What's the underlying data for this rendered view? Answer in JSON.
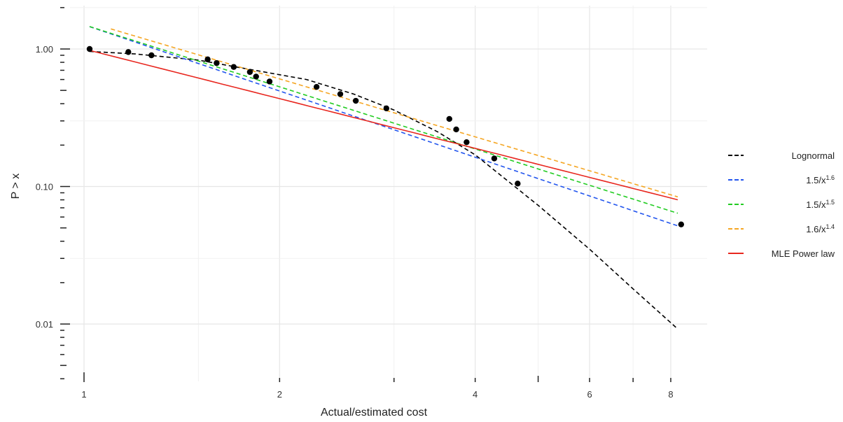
{
  "chart_data": {
    "type": "scatter",
    "xlabel": "Actual/estimated cost",
    "ylabel": "P > x",
    "x_scale": "log",
    "y_scale": "log",
    "xlim": [
      0.98,
      9.0
    ],
    "ylim": [
      0.0042,
      2.3
    ],
    "x_ticks": [
      {
        "value": 1,
        "label": "1"
      },
      {
        "value": 2,
        "label": "2"
      },
      {
        "value": 4,
        "label": "4"
      },
      {
        "value": 6,
        "label": "6"
      },
      {
        "value": 8,
        "label": "8"
      }
    ],
    "y_ticks": [
      {
        "value": 1,
        "label": "1.00"
      },
      {
        "value": 0.1,
        "label": "0.10"
      },
      {
        "value": 0.01,
        "label": "0.01"
      }
    ],
    "grid": true,
    "legend_position": "right",
    "points": [
      {
        "x": 1.02,
        "y": 1.0
      },
      {
        "x": 1.17,
        "y": 0.95
      },
      {
        "x": 1.27,
        "y": 0.9
      },
      {
        "x": 1.55,
        "y": 0.84
      },
      {
        "x": 1.6,
        "y": 0.79
      },
      {
        "x": 1.7,
        "y": 0.74
      },
      {
        "x": 1.8,
        "y": 0.68
      },
      {
        "x": 1.84,
        "y": 0.63
      },
      {
        "x": 1.93,
        "y": 0.58
      },
      {
        "x": 2.28,
        "y": 0.53
      },
      {
        "x": 2.48,
        "y": 0.47
      },
      {
        "x": 2.62,
        "y": 0.42
      },
      {
        "x": 2.92,
        "y": 0.37
      },
      {
        "x": 3.65,
        "y": 0.31
      },
      {
        "x": 3.74,
        "y": 0.26
      },
      {
        "x": 3.88,
        "y": 0.21
      },
      {
        "x": 4.28,
        "y": 0.16
      },
      {
        "x": 4.65,
        "y": 0.105
      },
      {
        "x": 8.3,
        "y": 0.053
      }
    ],
    "series": [
      {
        "name": "Lognormal",
        "color": "#000000",
        "dash": "dashed",
        "x": [
          1.02,
          1.2,
          1.5,
          1.8,
          2.2,
          2.6,
          3.0,
          3.5,
          4.0,
          5.0,
          6.0,
          7.0,
          8.2
        ],
        "y": [
          0.96,
          0.92,
          0.83,
          0.71,
          0.6,
          0.47,
          0.36,
          0.25,
          0.17,
          0.073,
          0.035,
          0.018,
          0.0092
        ]
      },
      {
        "name": "1.5/x",
        "exponent": "1.6",
        "color": "#2255ee",
        "dash": "dashed",
        "coef": 1.5,
        "power": 1.6,
        "x": [
          1.02,
          8.2
        ]
      },
      {
        "name": "1.5/x",
        "exponent": "1.5",
        "color": "#22cc22",
        "dash": "dashed",
        "coef": 1.5,
        "power": 1.5,
        "x": [
          1.02,
          8.2
        ]
      },
      {
        "name": "1.6/x",
        "exponent": "1.4",
        "color": "#f5a623",
        "dash": "dashed",
        "coef": 1.6,
        "power": 1.4,
        "x": [
          1.1,
          8.2
        ]
      },
      {
        "name": "MLE Power law",
        "color": "#e8271f",
        "dash": "solid",
        "coef": 1.0,
        "power": 1.2,
        "x": [
          1.02,
          8.2
        ]
      }
    ]
  }
}
